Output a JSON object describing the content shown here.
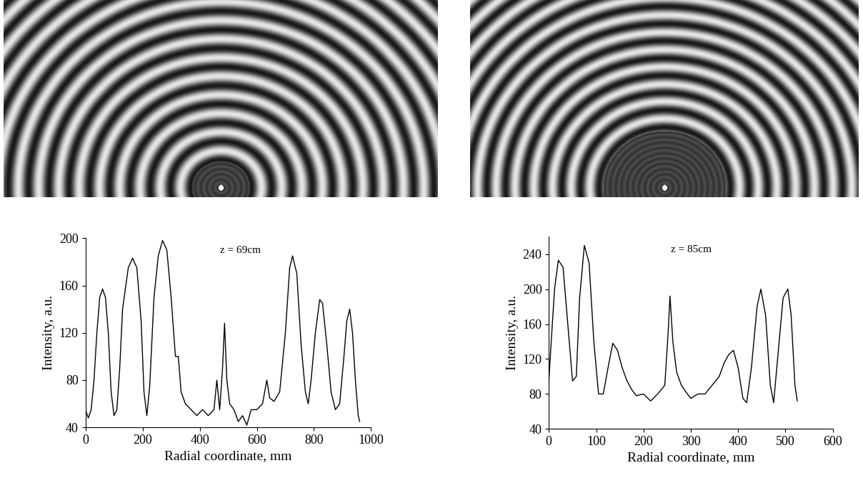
{
  "chart_data": [
    {
      "type": "line",
      "annotation": "z = 69cm",
      "xlabel": "Radial coordinate, mm",
      "ylabel": "Intensity, a.u.",
      "xlim": [
        0,
        1000
      ],
      "xticks": [
        0,
        200,
        400,
        600,
        800,
        1000
      ],
      "ylim": [
        40,
        200
      ],
      "yticks": [
        40,
        80,
        120,
        160,
        200
      ],
      "color": "#000000",
      "x": [
        0,
        10,
        20,
        30,
        40,
        50,
        60,
        70,
        80,
        90,
        100,
        110,
        120,
        130,
        150,
        165,
        180,
        195,
        205,
        215,
        225,
        240,
        255,
        270,
        285,
        300,
        315,
        325,
        335,
        350,
        370,
        390,
        410,
        430,
        450,
        460,
        470,
        480,
        487,
        495,
        505,
        520,
        535,
        550,
        565,
        580,
        600,
        620,
        635,
        645,
        660,
        680,
        700,
        715,
        725,
        740,
        755,
        770,
        780,
        790,
        805,
        820,
        830,
        845,
        860,
        875,
        890,
        905,
        915,
        925,
        935,
        945,
        955,
        960
      ],
      "values": [
        55,
        48,
        55,
        80,
        120,
        150,
        157,
        150,
        120,
        70,
        50,
        55,
        90,
        140,
        175,
        183,
        175,
        130,
        70,
        50,
        75,
        150,
        185,
        198,
        190,
        150,
        100,
        100,
        70,
        60,
        55,
        50,
        55,
        50,
        55,
        80,
        55,
        90,
        128,
        80,
        60,
        55,
        45,
        50,
        42,
        55,
        55,
        60,
        80,
        65,
        62,
        70,
        120,
        175,
        185,
        170,
        110,
        70,
        60,
        80,
        120,
        148,
        145,
        110,
        70,
        55,
        60,
        100,
        130,
        140,
        120,
        80,
        50,
        45
      ]
    },
    {
      "type": "line",
      "annotation": "z = 85cm",
      "xlabel": "Radial coordinate, mm",
      "ylabel": "Intensity, a.u.",
      "xlim": [
        0,
        600
      ],
      "xticks": [
        0,
        100,
        200,
        300,
        400,
        500,
        600
      ],
      "ylim": [
        40,
        260
      ],
      "yticks": [
        40,
        80,
        120,
        160,
        200,
        240
      ],
      "color": "#000000",
      "x": [
        0,
        5,
        12,
        20,
        30,
        40,
        50,
        58,
        65,
        75,
        85,
        95,
        105,
        115,
        125,
        135,
        145,
        155,
        165,
        175,
        185,
        200,
        215,
        230,
        245,
        252,
        256,
        262,
        270,
        280,
        290,
        300,
        315,
        330,
        345,
        360,
        370,
        380,
        390,
        400,
        410,
        418,
        428,
        440,
        448,
        458,
        468,
        475,
        485,
        495,
        505,
        512,
        520,
        525
      ],
      "values": [
        95,
        140,
        200,
        233,
        225,
        160,
        95,
        100,
        190,
        250,
        230,
        140,
        80,
        80,
        110,
        138,
        130,
        110,
        95,
        85,
        78,
        80,
        72,
        80,
        90,
        150,
        192,
        140,
        105,
        90,
        82,
        75,
        80,
        80,
        90,
        100,
        115,
        125,
        130,
        110,
        75,
        70,
        110,
        180,
        200,
        170,
        90,
        70,
        130,
        190,
        200,
        170,
        90,
        72
      ]
    }
  ]
}
